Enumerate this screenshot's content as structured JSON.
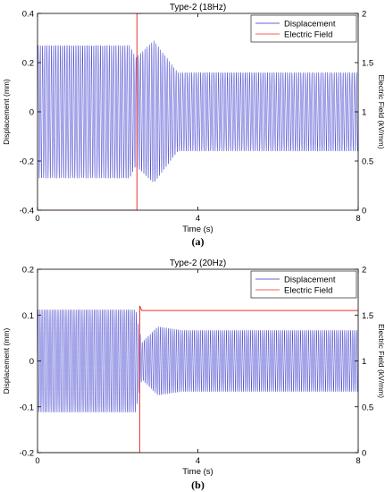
{
  "chart_data": [
    {
      "type": "line",
      "title": "Type-2 (18Hz)",
      "caption": "(a)",
      "xlabel": "Time (s)",
      "ylabel": "Displacement (mm)",
      "y2label": "Electric Field (kV/mm)",
      "xlim": [
        0,
        8
      ],
      "ylim": [
        -0.4,
        0.4
      ],
      "y2lim": [
        0,
        2
      ],
      "xticks": [
        "0",
        "4",
        "8"
      ],
      "yticks": [
        "-0.4",
        "-0.2",
        "0",
        "0.2",
        "0.4"
      ],
      "y2ticks": [
        "0",
        "0.5",
        "1",
        "1.5",
        "2"
      ],
      "grid": false,
      "legend_position": "top-right",
      "series": [
        {
          "name": "Displacement",
          "color": "#3333cc",
          "frequency_hz": 18,
          "amplitude_envelope": {
            "t": [
              0,
              2.3,
              2.45,
              2.9,
              3.5,
              8
            ],
            "amp": [
              0.27,
              0.27,
              0.22,
              0.29,
              0.16,
              0.16
            ]
          }
        },
        {
          "name": "Electric Field",
          "color": "#e83333",
          "axis": "right",
          "x": [
            0,
            2.48,
            2.48,
            2.6,
            2.6
          ],
          "y": [
            0,
            0,
            2.0,
            2.0,
            2.0
          ]
        }
      ]
    },
    {
      "type": "line",
      "title": "Type-2 (20Hz)",
      "caption": "(b)",
      "xlabel": "Time (s)",
      "ylabel": "Displacement (mm)",
      "y2label": "Electric Field (kV/mm)",
      "xlim": [
        0,
        8
      ],
      "ylim": [
        -0.2,
        0.2
      ],
      "y2lim": [
        0,
        2
      ],
      "xticks": [
        "0",
        "4",
        "8"
      ],
      "yticks": [
        "-0.2",
        "-0.1",
        "0",
        "0.1",
        "0.2"
      ],
      "y2ticks": [
        "0",
        "0.5",
        "1",
        "1.5",
        "2"
      ],
      "grid": false,
      "legend_position": "top-right",
      "series": [
        {
          "name": "Displacement",
          "color": "#3333cc",
          "frequency_hz": 20,
          "amplitude_envelope": {
            "t": [
              0,
              2.45,
              2.6,
              3.0,
              3.6,
              8
            ],
            "amp": [
              0.112,
              0.112,
              0.04,
              0.075,
              0.067,
              0.067
            ]
          }
        },
        {
          "name": "Electric Field",
          "color": "#e83333",
          "axis": "right",
          "x": [
            0,
            2.55,
            2.55,
            2.6,
            8
          ],
          "y": [
            0,
            0,
            1.6,
            1.55,
            1.55
          ]
        }
      ]
    }
  ]
}
